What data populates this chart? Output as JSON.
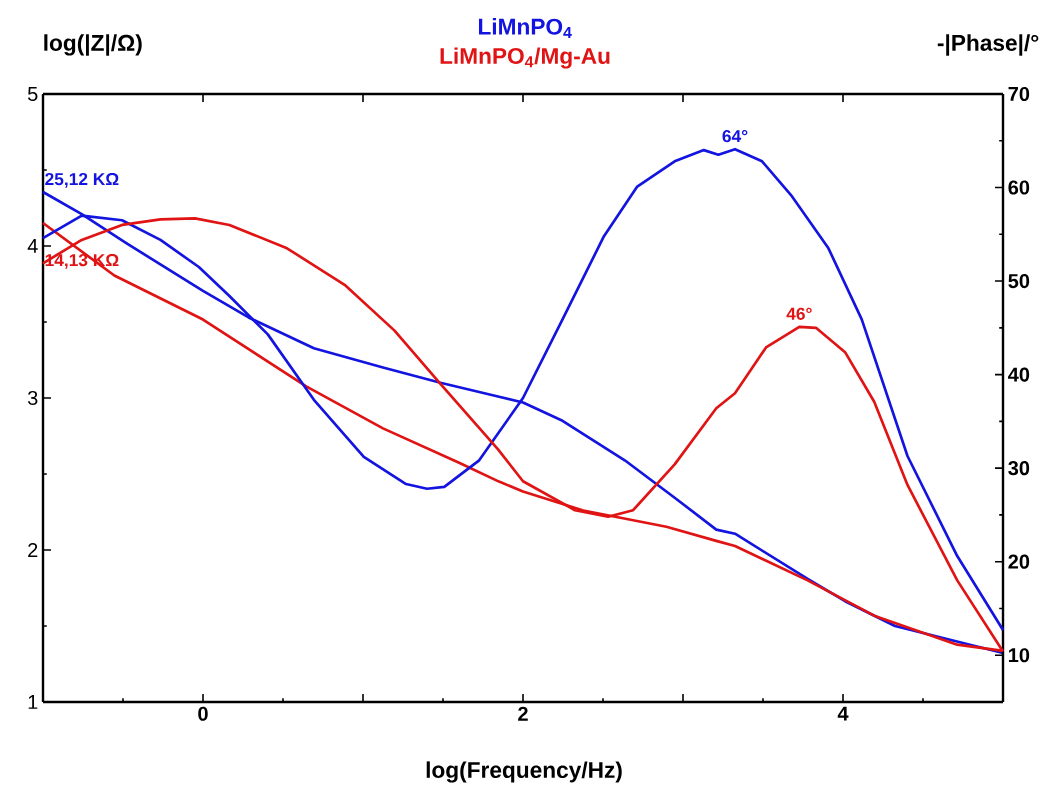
{
  "chart_data": {
    "type": "line",
    "xlabel": "log(Frequency/Hz)",
    "ylabel": "log(|Z|/Ω)",
    "y2label": "-|Phase|/°",
    "xlim": [
      -1,
      5
    ],
    "xticks": [
      {
        "value": -1,
        "label": null
      },
      0,
      {
        "value": 1,
        "label": null
      },
      2,
      {
        "value": 3,
        "label": null
      },
      4,
      {
        "value": 5,
        "label": null
      }
    ],
    "ylim": [
      1,
      5
    ],
    "yticks": [
      1,
      2,
      3,
      4,
      5
    ],
    "y2lim": [
      5,
      70
    ],
    "y2ticks": [
      10,
      20,
      30,
      40,
      50,
      60,
      70
    ],
    "series": [
      {
        "name": "LiMnPO$_{4}$",
        "color": "#1414e0",
        "x": [
          -1,
          -0.758,
          -0.482,
          0,
          0.285,
          0.693,
          1.125,
          1.484,
          1.844,
          2,
          2.247,
          2.636,
          2.948,
          3.208,
          3.325,
          3.779,
          4.013,
          4.325,
          4.714,
          5
        ],
        "values": [
          4.355,
          4.209,
          4.02,
          3.705,
          3.53,
          3.327,
          3.2,
          3.1,
          3.01,
          2.97,
          2.85,
          2.59,
          2.344,
          2.134,
          2.107,
          1.81,
          1.663,
          1.5,
          null,
          1.322
        ]
      },
      {
        "name": "LiMnPO$_{4}$/Mg-Au",
        "color": "#e01414",
        "x": [
          -1,
          -0.554,
          0,
          0.645,
          1.125,
          1.604,
          1.85,
          2,
          2.377,
          2.896,
          3.208,
          3.325,
          3.779,
          4.195,
          4.714,
          5
        ],
        "values": [
          4.151,
          3.806,
          3.516,
          3.076,
          2.8,
          2.572,
          2.45,
          2.385,
          2.26,
          2.153,
          2.06,
          2.026,
          1.8,
          1.568,
          1.377,
          1.336
        ]
      },
      {
        "color": "#1414e0",
        "axis": "y2",
        "x": [
          -1,
          -0.758,
          -0.506,
          -0.266,
          -0.026,
          0.165,
          0.405,
          0.693,
          1.005,
          1.269,
          1.4,
          1.508,
          1.724,
          2,
          2.247,
          2.506,
          2.714,
          2.948,
          3.13,
          3.221,
          3.325,
          3.494,
          3.675,
          3.909,
          4.117,
          4.403,
          4.714,
          5
        ],
        "values": [
          54.6,
          57.0,
          56.5,
          54.4,
          51.5,
          48.4,
          44.3,
          37.3,
          31.2,
          28.3,
          27.8,
          28.0,
          30.8,
          37.5,
          45.9,
          54.8,
          60.1,
          62.8,
          64.0,
          63.5,
          64.1,
          62.8,
          59.2,
          53.5,
          45.9,
          31.3,
          20.6,
          12.7
        ]
      },
      {
        "color": "#e01414",
        "axis": "y2",
        "x": [
          -1,
          -0.758,
          -0.506,
          -0.266,
          -0.05,
          0.165,
          0.525,
          0.885,
          1.197,
          1.484,
          1.844,
          2,
          2.325,
          2.532,
          2.688,
          2.948,
          3.208,
          3.325,
          3.519,
          3.727,
          3.831,
          4.013,
          4.195,
          4.403,
          4.714,
          5
        ],
        "values": [
          51.9,
          54.4,
          56.0,
          56.6,
          56.7,
          56.0,
          53.5,
          49.6,
          44.7,
          39.0,
          32.0,
          28.6,
          25.5,
          24.8,
          25.5,
          30.4,
          36.4,
          38.0,
          42.9,
          45.1,
          45.0,
          42.4,
          37.1,
          28.2,
          18.0,
          10.4
        ]
      }
    ],
    "annotations": [
      {
        "text": "25,12 KΩ",
        "x": -1,
        "y": 4.355
      },
      {
        "text": "14,13 KΩ",
        "x": -1,
        "y": 4.151
      },
      "64°",
      "46°"
    ],
    "grid": false,
    "marker": "none",
    "line_style": "solid"
  }
}
